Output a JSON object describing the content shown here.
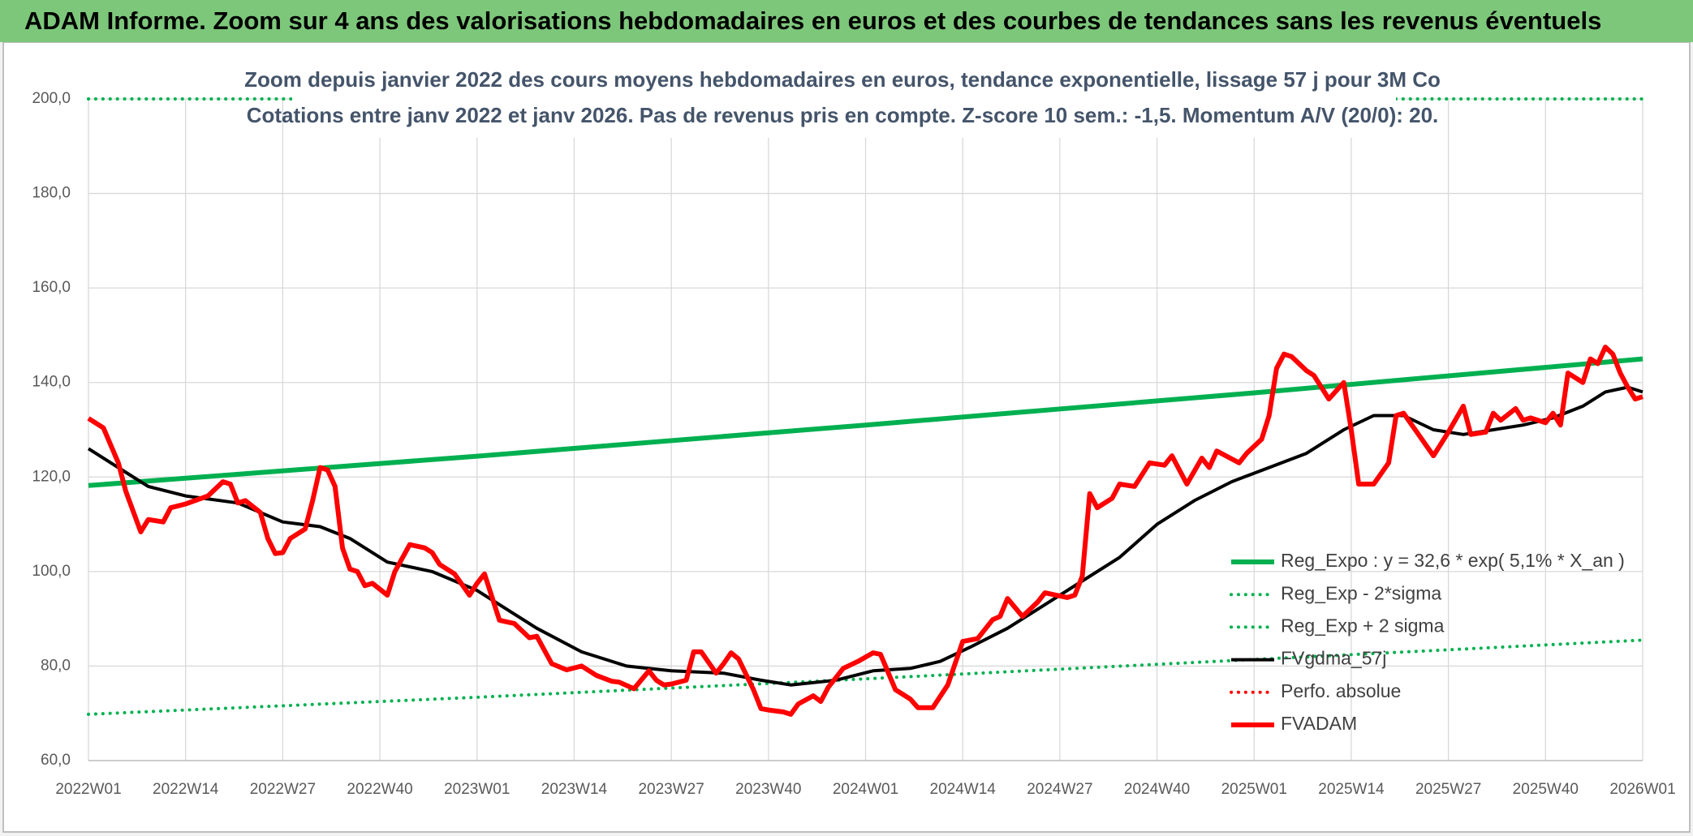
{
  "chart_data": {
    "type": "line",
    "title": "ADAM Informe. Zoom sur 4 ans des valorisations hebdomadaires en euros et des courbes de tendances sans les revenus éventuels",
    "subtitle": [
      "Zoom depuis janvier 2022 des cours moyens hebdomadaires en euros, tendance exponentielle, lissage 57 j pour 3M Co",
      "Cotations entre janv 2022 et janv 2026. Pas de revenus pris en compte. Z-score 10 sem.: -1,5. Momentum A/V (20/0): 20."
    ],
    "xlim": [
      0,
      208
    ],
    "xticks": [
      {
        "value": 0,
        "label": "2022W01"
      },
      {
        "value": 13,
        "label": "2022W14"
      },
      {
        "value": 26,
        "label": "2022W27"
      },
      {
        "value": 39,
        "label": "2022W40"
      },
      {
        "value": 52,
        "label": "2023W01"
      },
      {
        "value": 65,
        "label": "2023W14"
      },
      {
        "value": 78,
        "label": "2023W27"
      },
      {
        "value": 91,
        "label": "2023W40"
      },
      {
        "value": 104,
        "label": "2024W01"
      },
      {
        "value": 117,
        "label": "2024W14"
      },
      {
        "value": 130,
        "label": "2024W27"
      },
      {
        "value": 143,
        "label": "2024W40"
      },
      {
        "value": 156,
        "label": "2025W01"
      },
      {
        "value": 169,
        "label": "2025W14"
      },
      {
        "value": 182,
        "label": "2025W27"
      },
      {
        "value": 195,
        "label": "2025W40"
      },
      {
        "value": 208,
        "label": "2026W01"
      }
    ],
    "ylim": [
      60,
      200
    ],
    "yticks": [
      {
        "value": 60,
        "label": "60,0"
      },
      {
        "value": 80,
        "label": "80,0"
      },
      {
        "value": 100,
        "label": "100,0"
      },
      {
        "value": 120,
        "label": "120,0"
      },
      {
        "value": 140,
        "label": "140,0"
      },
      {
        "value": 160,
        "label": "160,0"
      },
      {
        "value": 180,
        "label": "180,0"
      },
      {
        "value": 200,
        "label": "200,0"
      }
    ],
    "grid": true,
    "legend": "bottom-right",
    "series": [
      {
        "name": "Reg_Expo : y = 32,6 * exp( 5,1% *  X_an )",
        "color": "#00b050",
        "style": "solid",
        "width": 6,
        "x": [
          0,
          52,
          104,
          156,
          208
        ],
        "values": [
          118.2,
          124.4,
          131,
          137.8,
          145
        ]
      },
      {
        "name": "Reg_Exp - 2*sigma",
        "color": "#00b050",
        "style": "dotted",
        "width": 4,
        "x": [
          0,
          52,
          104,
          156,
          208
        ],
        "values": [
          69.8,
          73.4,
          77.3,
          81.4,
          85.5
        ]
      },
      {
        "name": "Reg_Exp + 2 sigma",
        "color": "#00b050",
        "style": "dotted",
        "width": 4,
        "x": [
          0,
          208
        ],
        "values": [
          200,
          200
        ]
      },
      {
        "name": "FVgdma_57j",
        "color": "#000000",
        "style": "solid",
        "width": 4,
        "x": [
          0,
          5,
          8,
          13,
          20,
          26,
          31,
          35,
          40,
          46,
          52,
          60,
          66,
          72,
          78,
          85,
          90,
          94,
          100,
          105,
          110,
          114,
          118,
          123,
          128,
          133,
          138,
          143,
          148,
          153,
          158,
          163,
          168,
          172,
          176,
          180,
          184,
          188,
          192,
          196,
          200,
          203,
          206,
          208
        ],
        "values": [
          126,
          121,
          118,
          116,
          114.5,
          110.5,
          109.5,
          107,
          102,
          100,
          96,
          88,
          83,
          80,
          79,
          78.5,
          77,
          76,
          77,
          79,
          79.5,
          81,
          84,
          88,
          93,
          98,
          103,
          110,
          115,
          119,
          122,
          125,
          130,
          133,
          133,
          130,
          129,
          130,
          131,
          132.5,
          135,
          138,
          139,
          138
        ]
      },
      {
        "name": "Perfo. absolue",
        "color": "#ff0000",
        "style": "dotted",
        "width": 4,
        "x": [],
        "values": []
      },
      {
        "name": "FVADAM",
        "color": "#ff0000",
        "style": "solid",
        "width": 6,
        "x": [
          0,
          2,
          4,
          5,
          7,
          8,
          10,
          11,
          13,
          16,
          18,
          19,
          20,
          21,
          23,
          24,
          25,
          26,
          27,
          29,
          30,
          31,
          32,
          33,
          34,
          35,
          36,
          37,
          38,
          40,
          41,
          43,
          45,
          46,
          47,
          49,
          51,
          52,
          53,
          55,
          57,
          59,
          60,
          62,
          64,
          66,
          68,
          70,
          71,
          73,
          75,
          76,
          77,
          78,
          80,
          81,
          82,
          84,
          85,
          86,
          87,
          89,
          90,
          91,
          93,
          94,
          95,
          97,
          98,
          99,
          101,
          103,
          105,
          106,
          108,
          110,
          111,
          113,
          115,
          117,
          119,
          121,
          122,
          123,
          125,
          127,
          128,
          131,
          132,
          133,
          134,
          135,
          137,
          138,
          140,
          142,
          144,
          145,
          147,
          149,
          150,
          151,
          154,
          155,
          157,
          158,
          159,
          160,
          161,
          163,
          164,
          166,
          168,
          169,
          170,
          172,
          174,
          175,
          176,
          178,
          180,
          182,
          184,
          185,
          187,
          188,
          189,
          191,
          192,
          193,
          195,
          196,
          197,
          198,
          200,
          201,
          202,
          203,
          204,
          205,
          206,
          207,
          208
        ],
        "values": [
          132.4,
          130.4,
          123,
          117,
          108.4,
          111,
          110.5,
          113.5,
          114.3,
          116,
          119,
          118.5,
          114.5,
          115,
          112.5,
          107,
          103.8,
          104,
          107,
          109,
          115,
          122,
          121.5,
          118,
          105,
          100.5,
          100,
          97,
          97.5,
          95,
          100,
          105.7,
          105,
          104,
          101.5,
          99.5,
          95,
          97.5,
          99.5,
          89.7,
          89,
          86,
          86.3,
          80.5,
          79.2,
          80,
          78,
          76.8,
          76.6,
          75.2,
          79,
          77,
          76,
          76.2,
          77,
          83,
          83,
          78.5,
          80.5,
          82.8,
          81.5,
          75,
          71,
          70.7,
          70.3,
          69.8,
          72,
          73.7,
          72.5,
          75.5,
          79.5,
          81,
          82.8,
          82.5,
          75,
          73,
          71.2,
          71.2,
          76,
          85.2,
          85.8,
          89.8,
          90.5,
          94.3,
          90.5,
          93.5,
          95.5,
          94.5,
          95,
          99,
          116.5,
          113.5,
          115.5,
          118.5,
          118,
          123,
          122.5,
          124.5,
          118.5,
          124,
          122,
          125.5,
          123,
          125,
          128,
          133,
          143,
          146,
          145.5,
          142.5,
          141.5,
          136.5,
          140,
          130,
          118.5,
          118.5,
          123,
          133,
          133.5,
          129,
          124.5,
          129.5,
          135,
          129,
          129.5,
          133.5,
          132,
          134.5,
          132,
          132.5,
          131.5,
          133.5,
          131,
          142,
          140,
          145,
          144,
          147.5,
          146,
          142,
          139,
          136.5,
          137
        ]
      }
    ]
  }
}
